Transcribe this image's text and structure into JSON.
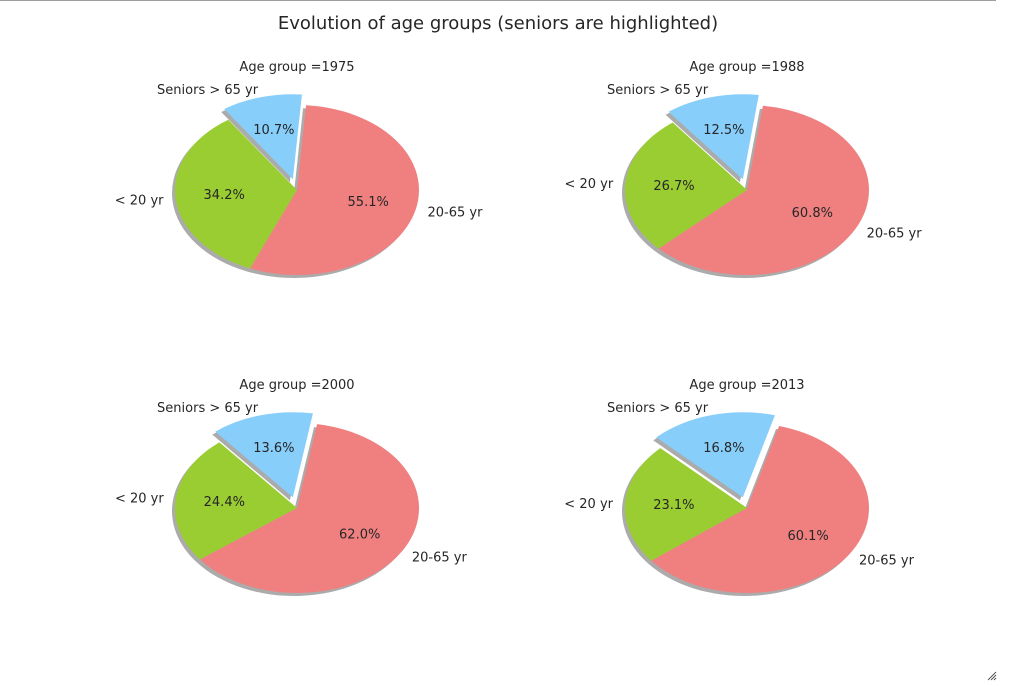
{
  "chart_data": {
    "type": "pie",
    "title": "Evolution of age groups (seniors are highlighted)",
    "colors": {
      "Seniors > 65 yr": "#87cefa",
      "< 20 yr": "#9acd32",
      "20-65 yr": "#f08080"
    },
    "charts": [
      {
        "title": "Age group =1975",
        "slices": [
          {
            "label": "Seniors > 65 yr",
            "value": 10.7,
            "pct_label": "10.7%",
            "explode": true
          },
          {
            "label": "< 20 yr",
            "value": 34.2,
            "pct_label": "34.2%"
          },
          {
            "label": "20-65 yr",
            "value": 55.1,
            "pct_label": "55.1%"
          }
        ]
      },
      {
        "title": "Age group =1988",
        "slices": [
          {
            "label": "Seniors > 65 yr",
            "value": 12.5,
            "pct_label": "12.5%",
            "explode": true
          },
          {
            "label": "< 20 yr",
            "value": 26.7,
            "pct_label": "26.7%"
          },
          {
            "label": "20-65 yr",
            "value": 60.8,
            "pct_label": "60.8%"
          }
        ]
      },
      {
        "title": "Age group =2000",
        "slices": [
          {
            "label": "Seniors > 65 yr",
            "value": 13.6,
            "pct_label": "13.6%",
            "explode": true
          },
          {
            "label": "< 20 yr",
            "value": 24.4,
            "pct_label": "24.4%"
          },
          {
            "label": "20-65 yr",
            "value": 62.0,
            "pct_label": "62.0%"
          }
        ]
      },
      {
        "title": "Age group =2013",
        "slices": [
          {
            "label": "Seniors > 65 yr",
            "value": 16.8,
            "pct_label": "16.8%",
            "explode": true
          },
          {
            "label": "< 20 yr",
            "value": 23.1,
            "pct_label": "23.1%"
          },
          {
            "label": "20-65 yr",
            "value": 60.1,
            "pct_label": "60.1%"
          }
        ]
      }
    ]
  }
}
